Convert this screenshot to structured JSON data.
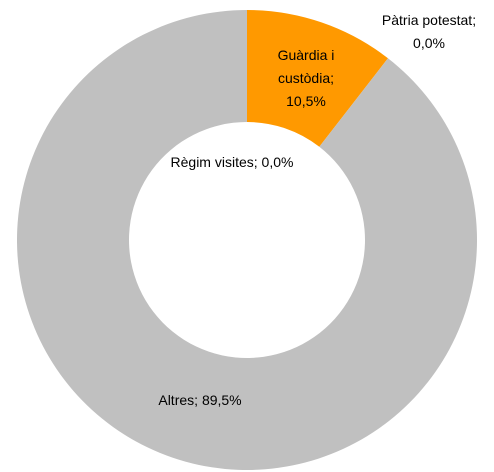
{
  "chart_data": {
    "type": "donut",
    "categories": [
      "Guàrdia i custòdia",
      "Pàtria potestat",
      "Règim visites",
      "Altres"
    ],
    "values": [
      10.5,
      0.0,
      0.0,
      89.5
    ],
    "value_labels": [
      "10,5%",
      "0,0%",
      "0,0%",
      "89,5%"
    ],
    "separator": ";",
    "colors": [
      "#FF9900",
      "#FF9900",
      "#C0C0C0",
      "#C0C0C0"
    ]
  }
}
